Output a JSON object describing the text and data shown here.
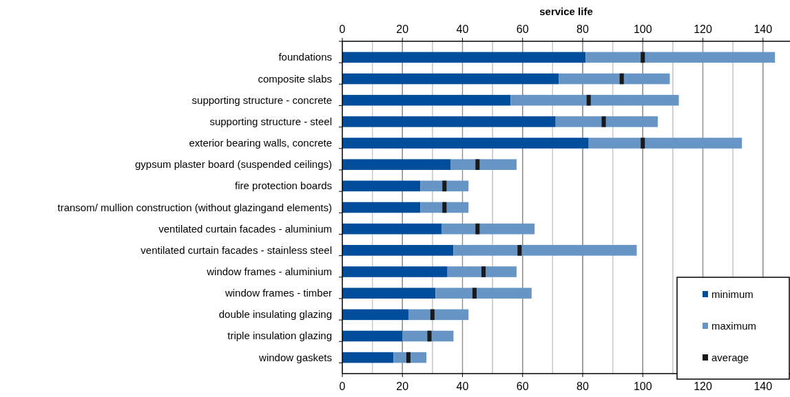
{
  "chart_data": {
    "type": "bar",
    "orientation": "horizontal",
    "stacked": true,
    "x2label": "service life",
    "categories": [
      "foundations",
      "composite slabs",
      "supporting structure - concrete",
      "supporting structure - steel",
      "exterior bearing walls, concrete",
      "gypsum plaster board (suspended ceilings)",
      "fire protection boards",
      "transom/ mullion construction (without glazingand elements)",
      "ventilated curtain facades - aluminium",
      "ventilated curtain facades - stainless steel",
      "window frames - aluminium",
      "window frames - timber",
      "double insulating glazing",
      "triple insulation glazing",
      "window gaskets"
    ],
    "series": [
      {
        "name": "minimum",
        "color": "#004d9b",
        "values": [
          81,
          72,
          56,
          71,
          82,
          36,
          26,
          26,
          33,
          37,
          35,
          31,
          22,
          20,
          17
        ]
      },
      {
        "name": "maximum",
        "color": "#6795c6",
        "values": [
          63,
          37,
          56,
          34,
          51,
          22,
          16,
          16,
          31,
          61,
          23,
          32,
          20,
          17,
          11
        ]
      },
      {
        "name": "average",
        "type": "scatter",
        "marker": "square",
        "color": "#1a1a1a",
        "values": [
          100,
          93,
          82,
          87,
          100,
          45,
          34,
          34,
          45,
          59,
          47,
          44,
          30,
          29,
          22
        ]
      }
    ],
    "xlim": [
      0,
      149
    ],
    "xticks": [
      0,
      {
        "value": 10,
        "label": null
      },
      20,
      {
        "value": 30,
        "label": null
      },
      40,
      {
        "value": 50,
        "label": null
      },
      60,
      {
        "value": 70,
        "label": null
      },
      80,
      {
        "value": 90,
        "label": null
      },
      100,
      {
        "value": 110,
        "label": null
      },
      120,
      {
        "value": 130,
        "label": null
      },
      140
    ],
    "x2lim": [
      0,
      149
    ],
    "x2ticks": [
      0,
      {
        "value": 10,
        "label": null
      },
      20,
      {
        "value": 30,
        "label": null
      },
      40,
      {
        "value": 50,
        "label": null
      },
      60,
      {
        "value": 70,
        "label": null
      },
      80,
      {
        "value": 90,
        "label": null
      },
      100,
      {
        "value": 110,
        "label": null
      },
      120,
      {
        "value": 130,
        "label": null
      },
      140
    ],
    "grid": "x",
    "legend": "bottom right"
  }
}
